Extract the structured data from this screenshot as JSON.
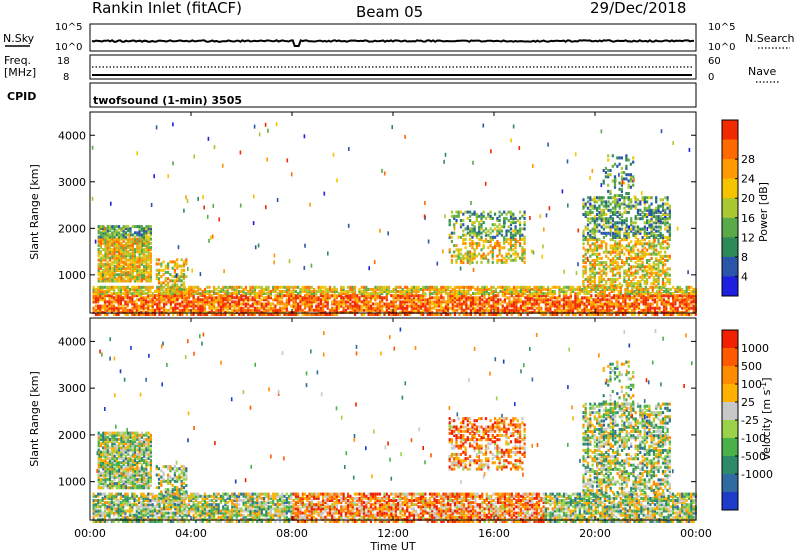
{
  "chart_data": {
    "type": "heatmap",
    "title": {
      "station": "Rankin Inlet (fitACF)",
      "beam": "Beam 05",
      "date": "29/Dec/2018"
    },
    "xlabel": "Time UT",
    "x_ticks": [
      "00:00",
      "04:00",
      "08:00",
      "12:00",
      "16:00",
      "20:00",
      "00:00"
    ],
    "x_range_hours": [
      0,
      24
    ],
    "top_panels": {
      "nsky": {
        "label": "N.Sky",
        "right_label": "N.Search",
        "left_ticks": [
          "10^5",
          "10^0"
        ],
        "right_ticks": [
          "10^5",
          "10^0"
        ]
      },
      "freq": {
        "label": "Freq.",
        "unit": "[MHz]",
        "right_label": "Nave",
        "left_ticks": [
          "18",
          "8"
        ],
        "right_ticks": [
          "60",
          "0"
        ]
      },
      "cpid": {
        "label": "CPID",
        "value": "twofsound (1-min) 3505"
      }
    },
    "panels": [
      {
        "name": "power",
        "ylabel": "Slant Range [km]",
        "y_ticks": [
          "1000",
          "2000",
          "3000",
          "4000"
        ],
        "y_range_km": [
          180,
          4500
        ],
        "colorbar_label": "Power [dB]",
        "colorbar_ticks": [
          "4",
          "8",
          "12",
          "16",
          "20",
          "24",
          "28"
        ],
        "colors": [
          "#1f1fe0",
          "#2a55a8",
          "#2e8b57",
          "#5aaa4a",
          "#a9c832",
          "#f5c400",
          "#ff9a00",
          "#ff6a00",
          "#f22a00"
        ]
      },
      {
        "name": "velocity",
        "ylabel": "Slant Range [km]",
        "y_ticks": [
          "1000",
          "2000",
          "3000",
          "4000"
        ],
        "y_range_km": [
          180,
          4500
        ],
        "colorbar_label": "Velocity [m s",
        "colorbar_label_sup": "-1",
        "colorbar_label_end": "]",
        "colorbar_ticks": [
          "1000",
          "500",
          "100",
          "25",
          "-25",
          "-100",
          "-500",
          "-1000"
        ],
        "colors": [
          "#1f3cc8",
          "#2f6aa0",
          "#2e8b6a",
          "#49b04a",
          "#9ad24a",
          "#c8c8c8",
          "#ffb000",
          "#ff8c00",
          "#ff5a00",
          "#f02000"
        ]
      }
    ]
  }
}
